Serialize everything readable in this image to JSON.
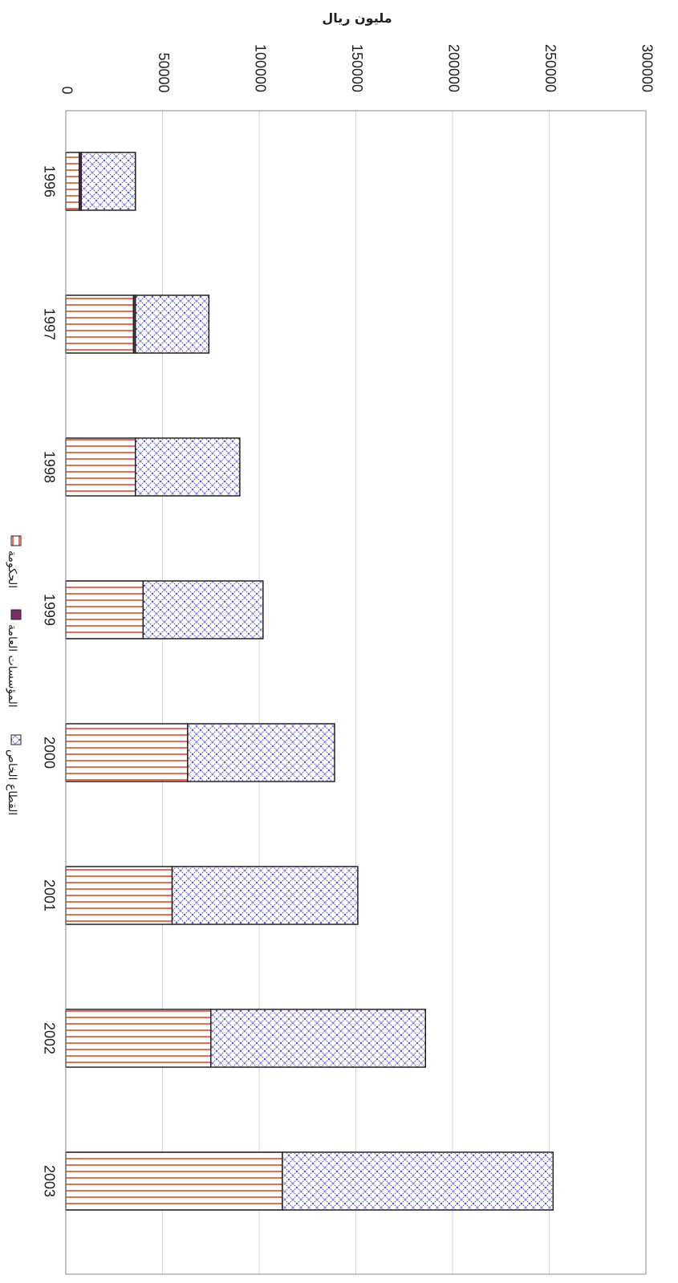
{
  "chart_data": {
    "type": "bar",
    "orientation": "horizontal-stacked",
    "title": "",
    "ylabel": "مليون ريال",
    "xlabel": "",
    "categories": [
      "1996",
      "1997",
      "1998",
      "1999",
      "2000",
      "2001",
      "2002",
      "2003"
    ],
    "series": [
      {
        "name": "الحكومة",
        "values": [
          7000,
          35000,
          36000,
          40000,
          63000,
          55000,
          75000,
          112000
        ],
        "color": "#e8472f",
        "pattern": "horizontal-lines"
      },
      {
        "name": "المؤسسات العامة",
        "values": [
          1000,
          1000,
          0,
          0,
          0,
          0,
          0,
          0
        ],
        "color": "#7b2d6b",
        "pattern": "solid"
      },
      {
        "name": "القطاع الخاص",
        "values": [
          28000,
          38000,
          54000,
          62000,
          76000,
          96000,
          111000,
          140000
        ],
        "color": "#4a4ad0",
        "pattern": "crosshatch"
      }
    ],
    "ylim": [
      0,
      300000
    ],
    "ticks": [
      "0",
      "50000",
      "100000",
      "150000",
      "200000",
      "250000",
      "300000"
    ],
    "grid": true,
    "legend_position": "bottom"
  }
}
